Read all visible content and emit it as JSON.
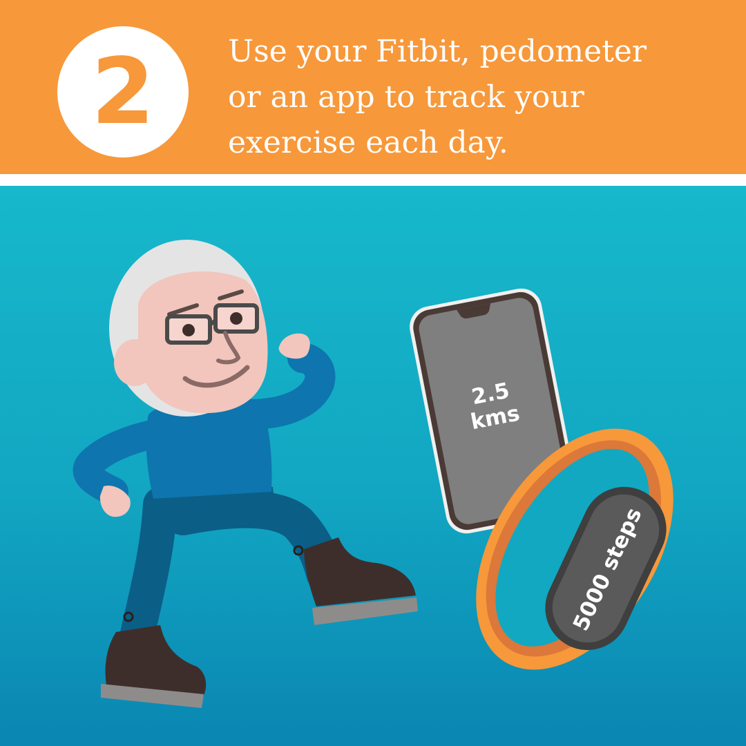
{
  "header": {
    "step_number": "2",
    "headline_lines": [
      "Use your Fitbit, pedometer",
      "or an app to track your",
      "exercise each day."
    ]
  },
  "phone": {
    "distance_value": "2.5",
    "distance_unit": "kms"
  },
  "tracker": {
    "steps_label": "5000 steps"
  },
  "colors": {
    "header_orange": "#F7983A",
    "scene_teal": "#17B8CB",
    "sweater_blue": "#0E75AE",
    "band_orange": "#F7983A",
    "boot_brown": "#3E2E2B"
  }
}
